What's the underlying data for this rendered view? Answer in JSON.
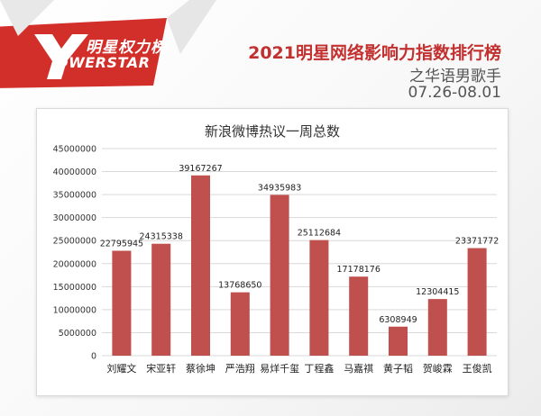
{
  "header": {
    "logo_cn": "明星权力榜",
    "logo_en": "OWERSTAR",
    "title": "2021明星网络影响力指数排行榜",
    "subtitle": "之华语男歌手",
    "date_range": "07.26-08.01"
  },
  "colors": {
    "accent": "#c2302f",
    "bar": "#c0504d",
    "logo_red": "#d0241f"
  },
  "chart_data": {
    "type": "bar",
    "title": "新浪微博热议一周总数",
    "xlabel": "",
    "ylabel": "",
    "ylim": [
      0,
      45000000
    ],
    "yticks": [
      0,
      5000000,
      10000000,
      15000000,
      20000000,
      25000000,
      30000000,
      35000000,
      40000000,
      45000000
    ],
    "grid": true,
    "categories": [
      "刘耀文",
      "宋亚轩",
      "蔡徐坤",
      "严浩翔",
      "易烊千玺",
      "丁程鑫",
      "马嘉祺",
      "黄子韬",
      "贺峻霖",
      "王俊凯"
    ],
    "values": [
      22795945,
      24315338,
      39167267,
      13768650,
      34935983,
      25112684,
      17178176,
      6308949,
      12304415,
      23371772
    ]
  }
}
